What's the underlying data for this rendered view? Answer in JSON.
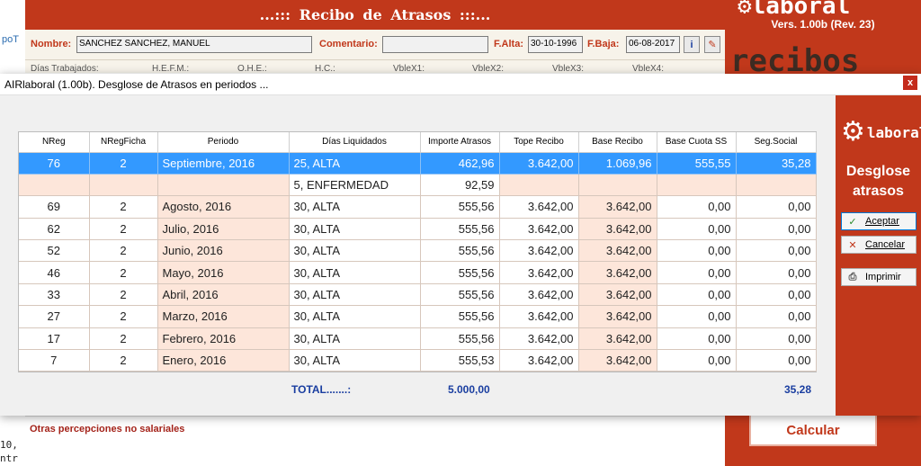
{
  "background": {
    "left_fragments": [
      "poT",
      "10,",
      "ntr"
    ],
    "header_title": "...:::   Recibo de Atrasos   :::...",
    "fields": {
      "nombre_label": "Nombre:",
      "nombre_value": "SANCHEZ SANCHEZ, MANUEL",
      "comentario_label": "Comentario:",
      "comentario_value": "",
      "falta_label": "F.Alta:",
      "falta_value": "30-10-1996",
      "fbaja_label": "F.Baja:",
      "fbaja_value": "06-08-2017"
    },
    "row2_labels": [
      "Días Trabajados:",
      "H.E.F.M.:",
      "O.H.E.:",
      "H.C.:",
      "VbleX1:",
      "VbleX2:",
      "VbleX3:",
      "VbleX4:"
    ],
    "logo_text": "laboral",
    "version": "Vers. 1.00b (Rev. 23)",
    "recibos_text": "recibos",
    "otras_label": "Otras percepciones no salariales",
    "calcular_label": "Calcular",
    "accent_color": "#c1381b"
  },
  "dialog": {
    "title": "AIRlaboral (1.00b). Desglose de Atrasos en periodos ...",
    "close_glyph": "x",
    "columns": [
      "NReg",
      "NRegFicha",
      "Periodo",
      "Días Liquidados",
      "Importe Atrasos",
      "Tope Recibo",
      "Base Recibo",
      "Base Cuota SS",
      "Seg.Social"
    ],
    "rows": [
      {
        "nreg": "76",
        "nregficha": "2",
        "periodo": "Septiembre, 2016",
        "dias": "25, ALTA",
        "importe": "462,96",
        "tope": "3.642,00",
        "base": "1.069,96",
        "cuota": "555,55",
        "seg": "35,28",
        "selected": true
      },
      {
        "nreg": "",
        "nregficha": "",
        "periodo": "",
        "dias": "5, ENFERMEDAD",
        "importe": "92,59",
        "tope": "",
        "base": "",
        "cuota": "",
        "seg": "",
        "selected": false
      },
      {
        "nreg": "69",
        "nregficha": "2",
        "periodo": "Agosto, 2016",
        "dias": "30, ALTA",
        "importe": "555,56",
        "tope": "3.642,00",
        "base": "3.642,00",
        "cuota": "0,00",
        "seg": "0,00",
        "selected": false
      },
      {
        "nreg": "62",
        "nregficha": "2",
        "periodo": "Julio, 2016",
        "dias": "30, ALTA",
        "importe": "555,56",
        "tope": "3.642,00",
        "base": "3.642,00",
        "cuota": "0,00",
        "seg": "0,00",
        "selected": false
      },
      {
        "nreg": "52",
        "nregficha": "2",
        "periodo": "Junio, 2016",
        "dias": "30, ALTA",
        "importe": "555,56",
        "tope": "3.642,00",
        "base": "3.642,00",
        "cuota": "0,00",
        "seg": "0,00",
        "selected": false
      },
      {
        "nreg": "46",
        "nregficha": "2",
        "periodo": "Mayo, 2016",
        "dias": "30, ALTA",
        "importe": "555,56",
        "tope": "3.642,00",
        "base": "3.642,00",
        "cuota": "0,00",
        "seg": "0,00",
        "selected": false
      },
      {
        "nreg": "33",
        "nregficha": "2",
        "periodo": "Abril, 2016",
        "dias": "30, ALTA",
        "importe": "555,56",
        "tope": "3.642,00",
        "base": "3.642,00",
        "cuota": "0,00",
        "seg": "0,00",
        "selected": false
      },
      {
        "nreg": "27",
        "nregficha": "2",
        "periodo": "Marzo, 2016",
        "dias": "30, ALTA",
        "importe": "555,56",
        "tope": "3.642,00",
        "base": "3.642,00",
        "cuota": "0,00",
        "seg": "0,00",
        "selected": false
      },
      {
        "nreg": "17",
        "nregficha": "2",
        "periodo": "Febrero, 2016",
        "dias": "30, ALTA",
        "importe": "555,56",
        "tope": "3.642,00",
        "base": "3.642,00",
        "cuota": "0,00",
        "seg": "0,00",
        "selected": false
      },
      {
        "nreg": "7",
        "nregficha": "2",
        "periodo": "Enero, 2016",
        "dias": "30, ALTA",
        "importe": "555,53",
        "tope": "3.642,00",
        "base": "3.642,00",
        "cuota": "0,00",
        "seg": "0,00",
        "selected": false
      }
    ],
    "total_label": "TOTAL.......:",
    "total_importe": "5.000,00",
    "total_seg": "35,28",
    "side": {
      "logo_text": "laboral",
      "title_line1": "Desglose",
      "title_line2": "atrasos",
      "aceptar_label": "Aceptar",
      "cancelar_label": "Cancelar",
      "imprimir_label": "Imprimir"
    },
    "selected_row_color": "#3399ff",
    "row_tint_color": "#fde6da"
  }
}
